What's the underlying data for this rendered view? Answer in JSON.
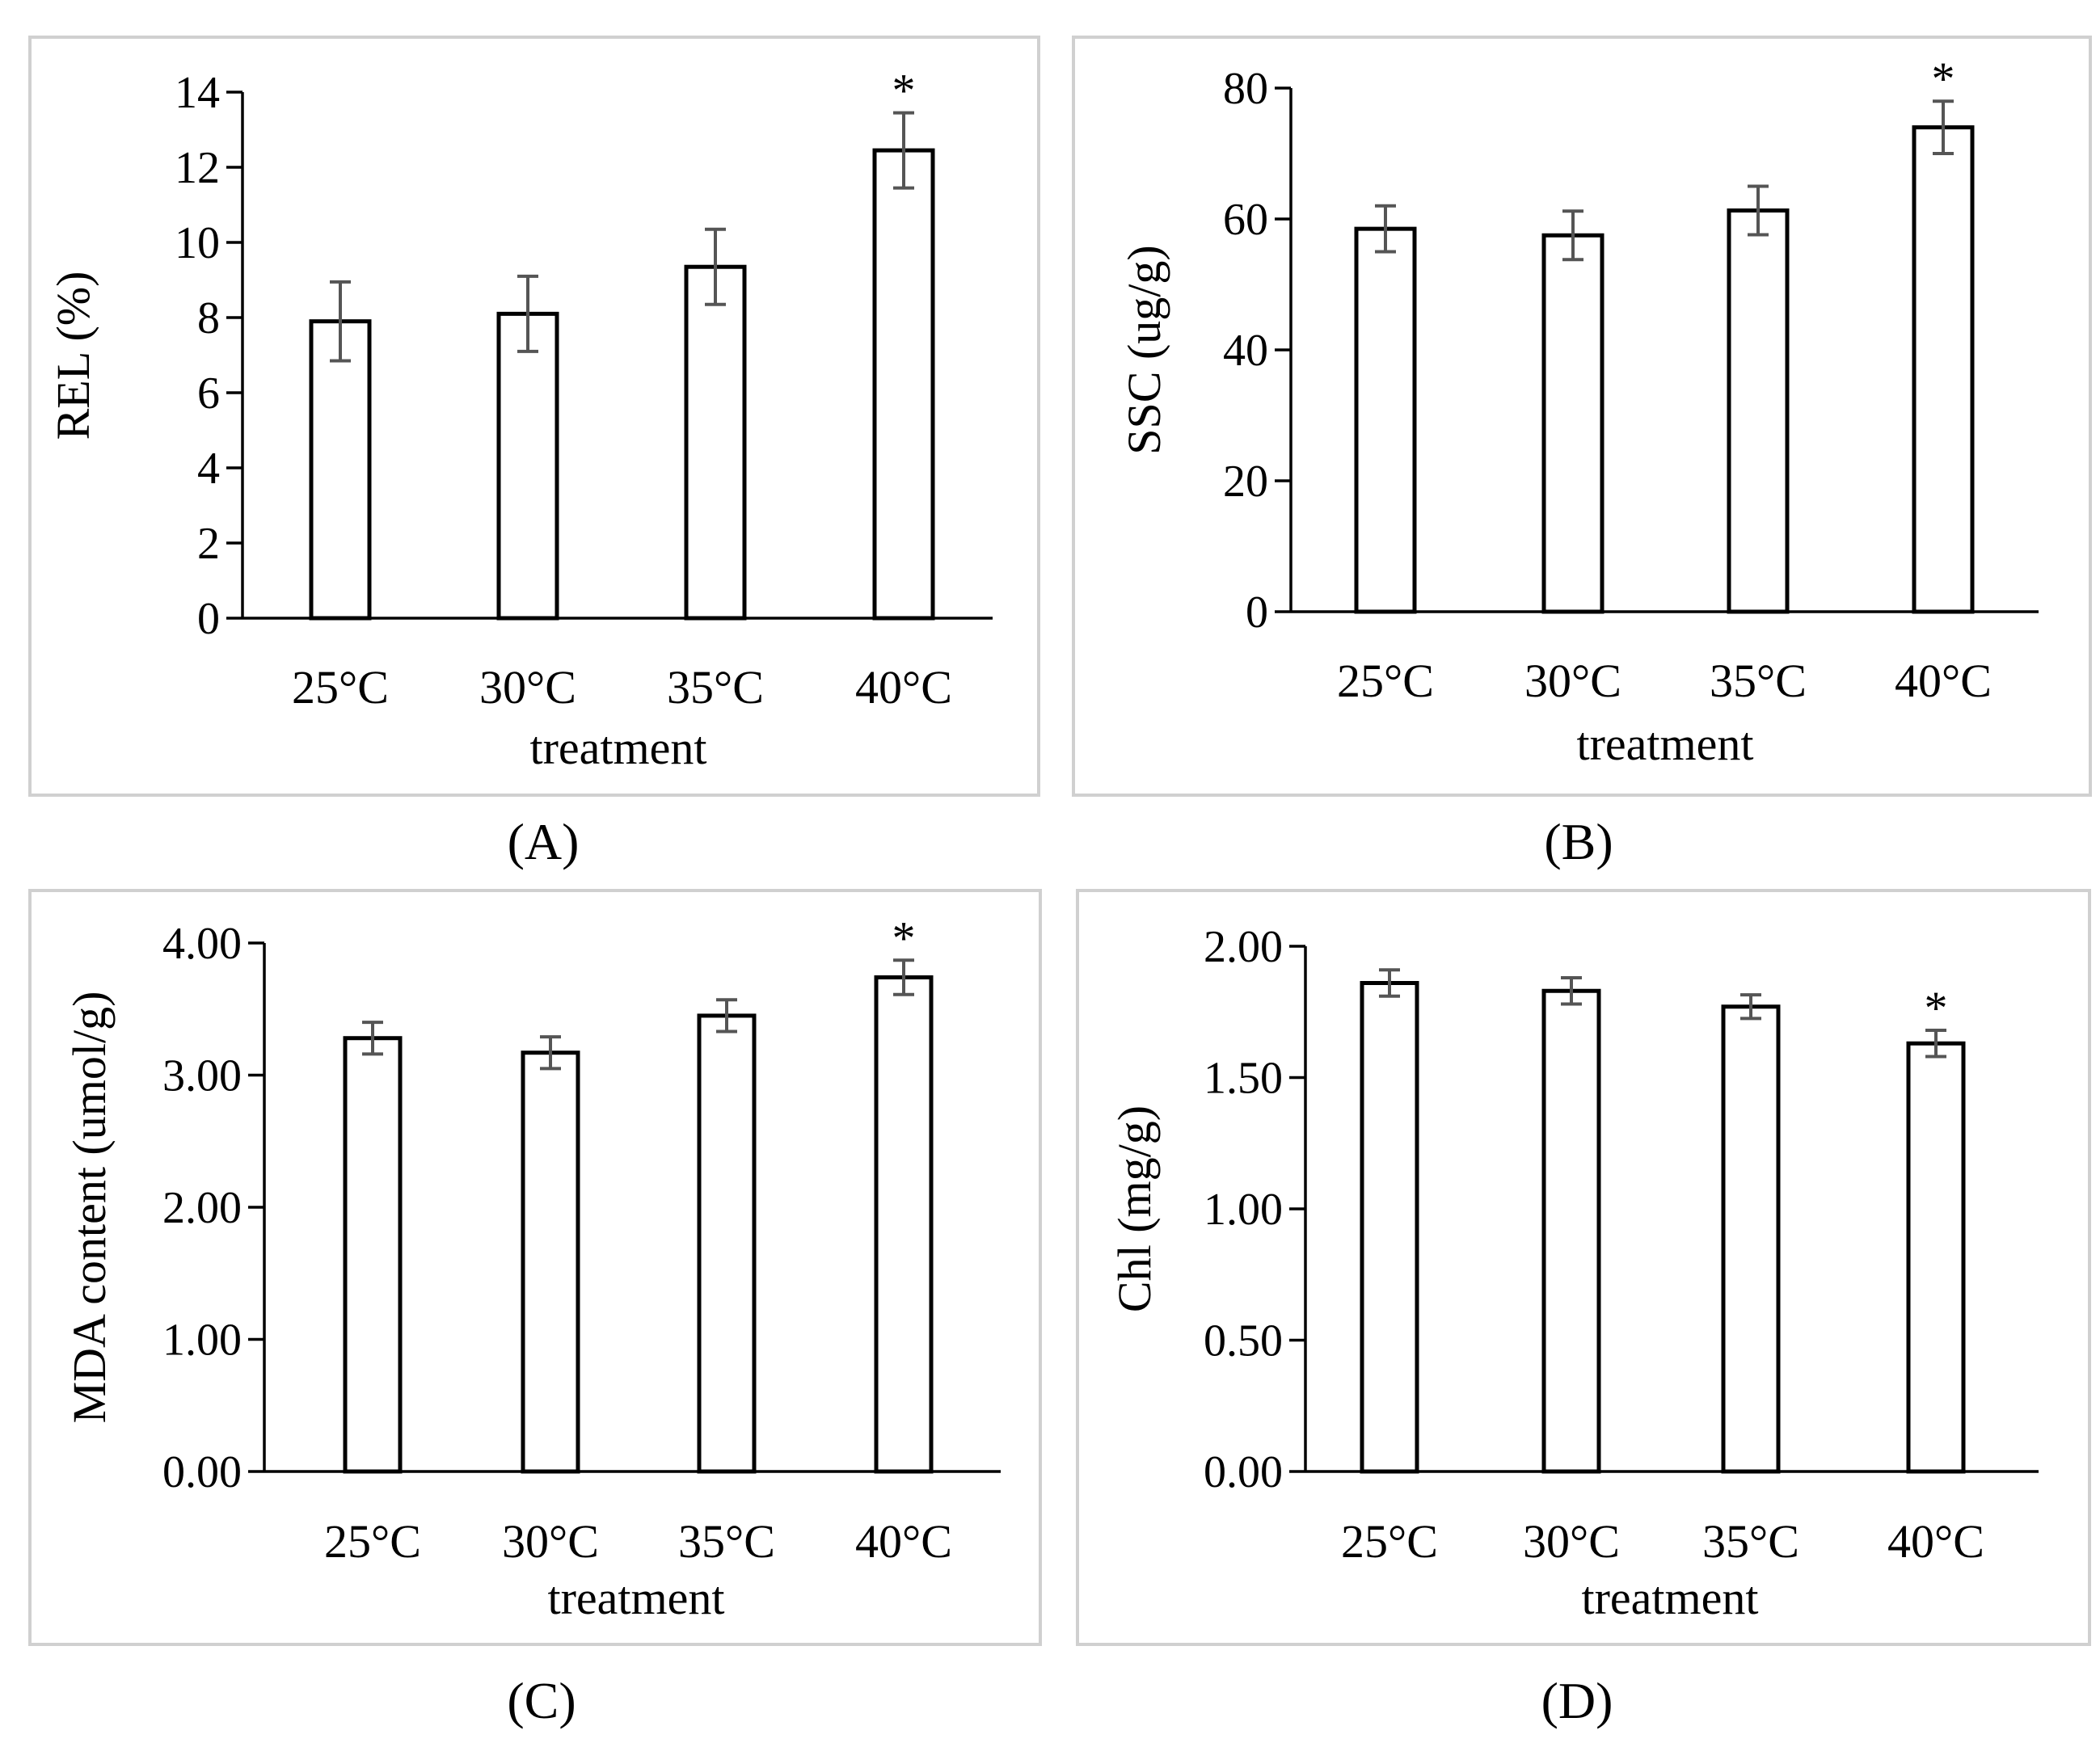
{
  "colors": {
    "frame": "#d0d0d0",
    "axis": "#000000",
    "bar_fill": "#ffffff",
    "bar_stroke": "#000000",
    "error_bar": "#555555"
  },
  "chart_data": [
    {
      "id": "A",
      "caption": "(A)",
      "type": "bar",
      "categories": [
        "25°C",
        "30°C",
        "35°C",
        "40°C"
      ],
      "values": [
        7.9,
        8.1,
        9.35,
        12.45
      ],
      "errors": [
        1.05,
        1.0,
        1.0,
        1.0
      ],
      "significance": [
        "",
        "",
        "",
        "*"
      ],
      "xlabel": "treatment",
      "ylabel": "REL (%)",
      "ylim": [
        0,
        14
      ],
      "ticks": [
        0,
        2,
        4,
        6,
        8,
        10,
        12,
        14
      ],
      "tick_labels": [
        "0",
        "2",
        "4",
        "6",
        "8",
        "10",
        "12",
        "14"
      ]
    },
    {
      "id": "B",
      "caption": "(B)",
      "type": "bar",
      "categories": [
        "25°C",
        "30°C",
        "35°C",
        "40°C"
      ],
      "values": [
        58.5,
        57.5,
        61.3,
        74.0
      ],
      "errors": [
        3.5,
        3.7,
        3.7,
        4.0
      ],
      "significance": [
        "",
        "",
        "",
        "*"
      ],
      "xlabel": "treatment",
      "ylabel": "SSC (ug/g)",
      "ylim": [
        0,
        80
      ],
      "ticks": [
        0,
        20,
        40,
        60,
        80
      ],
      "tick_labels": [
        "0",
        "20",
        "40",
        "60",
        "80"
      ]
    },
    {
      "id": "C",
      "caption": "(C)",
      "type": "bar",
      "categories": [
        "25°C",
        "30°C",
        "35°C",
        "40°C"
      ],
      "values": [
        3.28,
        3.17,
        3.45,
        3.74
      ],
      "errors": [
        0.12,
        0.12,
        0.12,
        0.13
      ],
      "significance": [
        "",
        "",
        "",
        "*"
      ],
      "xlabel": "treatment",
      "ylabel": "MDA content (umol/g)",
      "ylim": [
        0,
        4
      ],
      "ticks": [
        0,
        1,
        2,
        3,
        4
      ],
      "tick_labels": [
        "0.00",
        "1.00",
        "2.00",
        "3.00",
        "4.00"
      ]
    },
    {
      "id": "D",
      "caption": "(D)",
      "type": "bar",
      "categories": [
        "25°C",
        "30°C",
        "35°C",
        "40°C"
      ],
      "values": [
        1.86,
        1.83,
        1.77,
        1.63
      ],
      "errors": [
        0.05,
        0.05,
        0.045,
        0.05
      ],
      "significance": [
        "",
        "",
        "",
        "*"
      ],
      "xlabel": "treatment",
      "ylabel": "Chl (mg/g)",
      "ylim": [
        0,
        2
      ],
      "ticks": [
        0,
        0.5,
        1,
        1.5,
        2
      ],
      "tick_labels": [
        "0.00",
        "0.50",
        "1.00",
        "1.50",
        "2.00"
      ]
    }
  ]
}
